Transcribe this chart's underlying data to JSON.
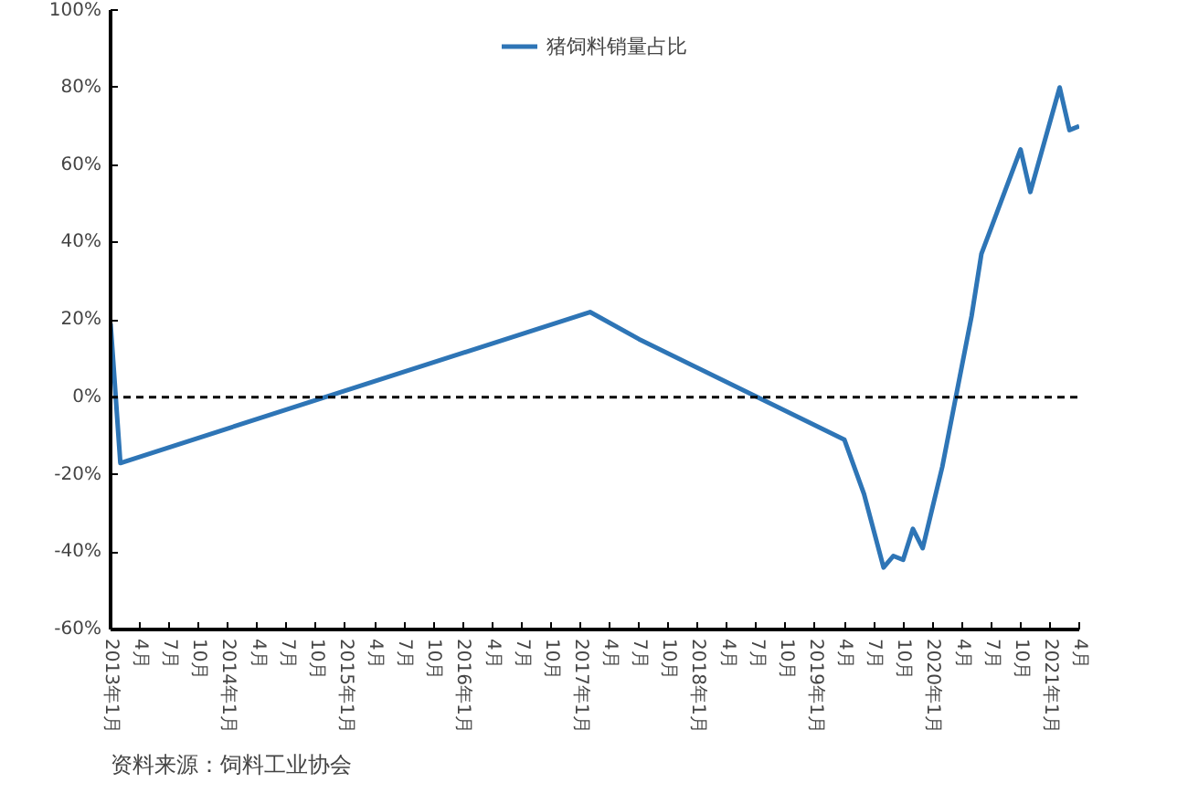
{
  "chart_data": {
    "type": "line",
    "x": [
      "2013-01",
      "2013-02",
      "2017-02",
      "2017-07",
      "2019-04",
      "2019-06",
      "2019-08",
      "2019-09",
      "2019-10",
      "2019-11",
      "2019-12",
      "2020-02",
      "2020-05",
      "2020-06",
      "2020-10",
      "2020-11",
      "2021-02",
      "2021-03",
      "2021-04"
    ],
    "series": [
      {
        "name": "猪饲料销量占比",
        "color": "#2e75b6",
        "values": [
          19,
          -17,
          22,
          15,
          -11,
          -25,
          -44,
          -41,
          -42,
          -34,
          -39,
          -18,
          21,
          37,
          64,
          53,
          80,
          69,
          70
        ]
      }
    ],
    "ylim": [
      -60,
      100
    ],
    "yticks": [
      {
        "value": -60,
        "label": "-60%"
      },
      {
        "value": -40,
        "label": "-40%"
      },
      {
        "value": -20,
        "label": "-20%"
      },
      {
        "value": 0,
        "label": "0%"
      },
      {
        "value": 20,
        "label": "20%"
      },
      {
        "value": 40,
        "label": "40%"
      },
      {
        "value": 60,
        "label": "60%"
      },
      {
        "value": 80,
        "label": "80%"
      },
      {
        "value": 100,
        "label": "100%"
      }
    ],
    "xlim": [
      "2013-01",
      "2021-04"
    ],
    "xticks": [
      {
        "value": "2013-01",
        "label": "2013年1月"
      },
      {
        "value": "2013-04",
        "label": "4月"
      },
      {
        "value": "2013-07",
        "label": "7月"
      },
      {
        "value": "2013-10",
        "label": "10月"
      },
      {
        "value": "2014-01",
        "label": "2014年1月"
      },
      {
        "value": "2014-04",
        "label": "4月"
      },
      {
        "value": "2014-07",
        "label": "7月"
      },
      {
        "value": "2014-10",
        "label": "10月"
      },
      {
        "value": "2015-01",
        "label": "2015年1月"
      },
      {
        "value": "2015-04",
        "label": "4月"
      },
      {
        "value": "2015-07",
        "label": "7月"
      },
      {
        "value": "2015-10",
        "label": "10月"
      },
      {
        "value": "2016-01",
        "label": "2016年1月"
      },
      {
        "value": "2016-04",
        "label": "4月"
      },
      {
        "value": "2016-07",
        "label": "7月"
      },
      {
        "value": "2016-10",
        "label": "10月"
      },
      {
        "value": "2017-01",
        "label": "2017年1月"
      },
      {
        "value": "2017-04",
        "label": "4月"
      },
      {
        "value": "2017-07",
        "label": "7月"
      },
      {
        "value": "2017-10",
        "label": "10月"
      },
      {
        "value": "2018-01",
        "label": "2018年1月"
      },
      {
        "value": "2018-04",
        "label": "4月"
      },
      {
        "value": "2018-07",
        "label": "7月"
      },
      {
        "value": "2018-10",
        "label": "10月"
      },
      {
        "value": "2019-01",
        "label": "2019年1月"
      },
      {
        "value": "2019-04",
        "label": "4月"
      },
      {
        "value": "2019-07",
        "label": "7月"
      },
      {
        "value": "2019-10",
        "label": "10月"
      },
      {
        "value": "2020-01",
        "label": "2020年1月"
      },
      {
        "value": "2020-04",
        "label": "4月"
      },
      {
        "value": "2020-07",
        "label": "7月"
      },
      {
        "value": "2020-10",
        "label": "10月"
      },
      {
        "value": "2021-01",
        "label": "2021年1月"
      },
      {
        "value": "2021-04",
        "label": "4月"
      }
    ],
    "ref_lines": [
      {
        "axis": "y",
        "value": 0,
        "color": "#000000",
        "line_style": "dashed"
      }
    ],
    "legend": "top",
    "grid": false,
    "annotations": [
      "资料来源：饲料工业协会"
    ]
  }
}
